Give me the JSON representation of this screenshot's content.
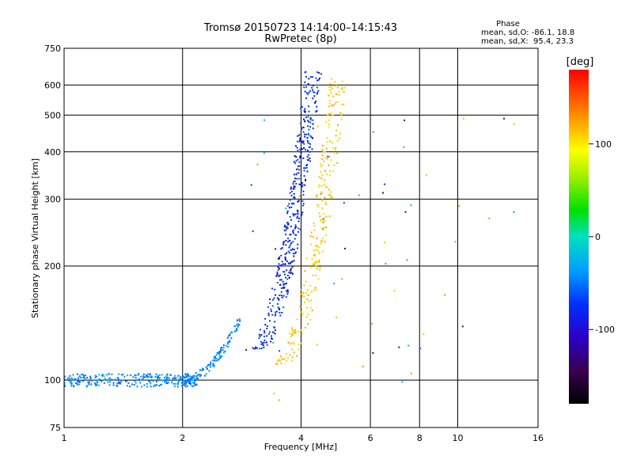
{
  "chart_data": {
    "type": "scatter",
    "title": "Tromsø 20150723 14:14:00–14:15:43",
    "subtitle": "RwPretec (8p)",
    "xlabel": "Frequency [MHz]",
    "ylabel": "Stationary phase Virtual Height [km]",
    "x_scale": "log2",
    "y_scale": "log",
    "xlim": [
      1,
      16
    ],
    "ylim": [
      75,
      750
    ],
    "x_ticks": [
      1,
      2,
      4,
      6,
      8,
      10,
      16
    ],
    "x_tick_labels": [
      "1",
      "2",
      "4",
      "6",
      "8",
      "10",
      "16"
    ],
    "y_ticks": [
      75,
      100,
      200,
      300,
      400,
      500,
      600,
      750
    ],
    "y_tick_labels": [
      "75",
      "100",
      "200",
      "300",
      "400",
      "500",
      "600",
      "750"
    ],
    "grid": true,
    "phase_stats": {
      "title": "Phase",
      "line_o": "mean, sd,O: -86.1, 18.8",
      "line_x": "mean, sd,X:  95.4, 23.3"
    },
    "colorbar": {
      "label": "[deg]",
      "range": [
        -180,
        180
      ],
      "ticks": [
        100,
        0,
        -100
      ],
      "tick_labels": [
        "100",
        "0",
        "-100"
      ]
    },
    "series": [
      {
        "name": "low-height trace",
        "x_range": [
          1.0,
          2.2
        ],
        "y_range": [
          96,
          104
        ],
        "phase": "-90 to -60"
      },
      {
        "name": "rising trace",
        "x_range": [
          2.0,
          2.8
        ],
        "y_range": [
          100,
          145
        ],
        "phase": "-80 to -40"
      },
      {
        "name": "F-layer O-mode",
        "x_range": [
          3.0,
          4.3
        ],
        "y_range": [
          120,
          650
        ],
        "phase": "-120 to -100"
      },
      {
        "name": "F-layer X-mode",
        "x_range": [
          3.5,
          5.0
        ],
        "y_range": [
          110,
          640
        ],
        "phase": "60 to 140"
      },
      {
        "name": "scattered echoes",
        "x_range": [
          2.8,
          14.0
        ],
        "y_range": [
          85,
          560
        ],
        "phase": "-110 to 140"
      }
    ]
  }
}
